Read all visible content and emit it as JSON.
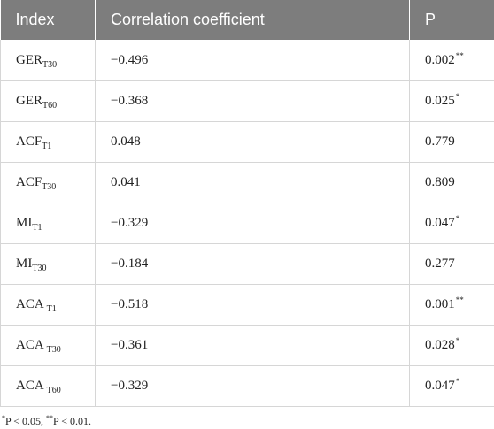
{
  "header": {
    "index": "Index",
    "correlation": "Correlation coefficient",
    "p": "P"
  },
  "rows": [
    {
      "base": "GER",
      "sub": "T30",
      "coef": "−0.496",
      "p": "0.002",
      "mark": "**"
    },
    {
      "base": "GER",
      "sub": "T60",
      "coef": "−0.368",
      "p": "0.025",
      "mark": "*"
    },
    {
      "base": "ACF",
      "sub": "T1",
      "coef": "0.048",
      "p": "0.779",
      "mark": ""
    },
    {
      "base": "ACF",
      "sub": "T30",
      "coef": "0.041",
      "p": "0.809",
      "mark": ""
    },
    {
      "base": "MI",
      "sub": "T1",
      "coef": "−0.329",
      "p": "0.047",
      "mark": "*"
    },
    {
      "base": "MI",
      "sub": "T30",
      "coef": "−0.184",
      "p": "0.277",
      "mark": ""
    },
    {
      "base": "ACA ",
      "sub": "T1",
      "coef": "−0.518",
      "p": "0.001",
      "mark": "**"
    },
    {
      "base": "ACA ",
      "sub": "T30",
      "coef": "−0.361",
      "p": "0.028",
      "mark": "*"
    },
    {
      "base": "ACA ",
      "sub": "T60",
      "coef": "−0.329",
      "p": "0.047",
      "mark": "*"
    }
  ],
  "footnote": {
    "mark1": "*",
    "text1": "P < 0.05, ",
    "mark2": "**",
    "text2": "P < 0.01."
  }
}
